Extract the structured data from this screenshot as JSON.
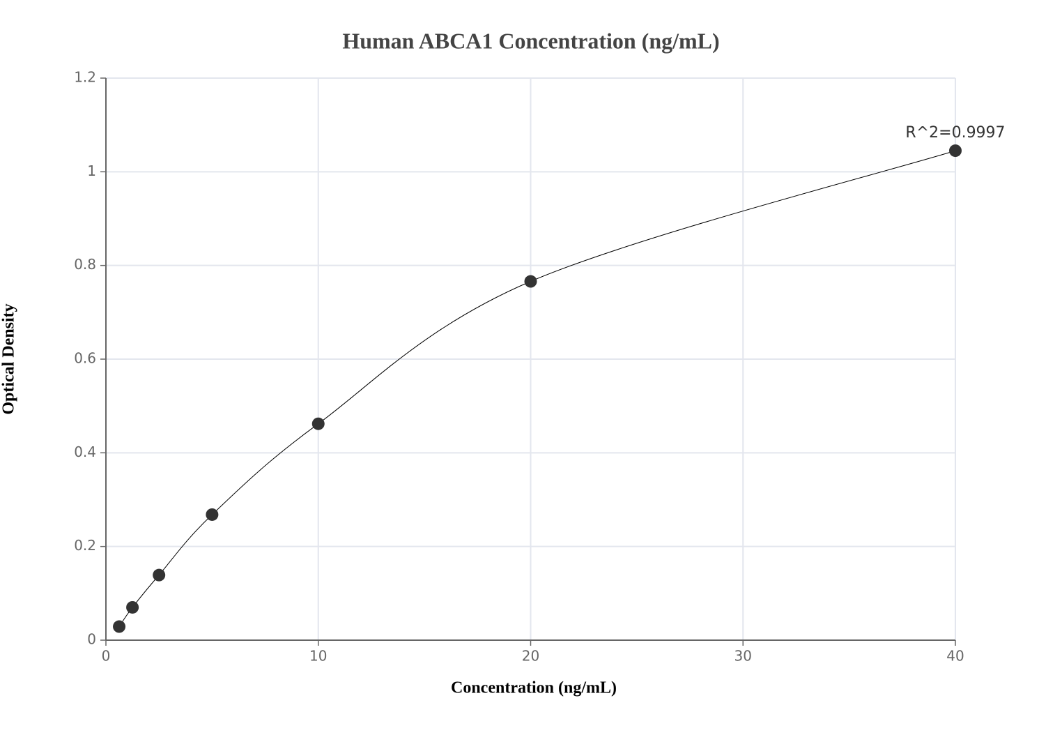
{
  "chart_data": {
    "type": "scatter",
    "title": "Human ABCA1 Concentration (ng/mL)",
    "x_label": "Concentration (ng/mL)",
    "y_label": "Optical Density",
    "annotation": "R^2=0.9997",
    "series": [
      {
        "x": [
          0.625,
          1.25,
          2.5,
          5,
          10,
          20,
          40
        ],
        "values": [
          0.029,
          0.07,
          0.139,
          0.268,
          0.462,
          0.766,
          1.045
        ],
        "color": "#333333"
      }
    ],
    "xlim": [
      0,
      40
    ],
    "xticks": [
      0,
      10,
      20,
      30,
      40
    ],
    "ylim": [
      0,
      1.2
    ],
    "yticks": [
      0,
      0.2,
      0.4,
      0.6,
      0.8,
      1,
      1.2
    ],
    "grid": true
  }
}
